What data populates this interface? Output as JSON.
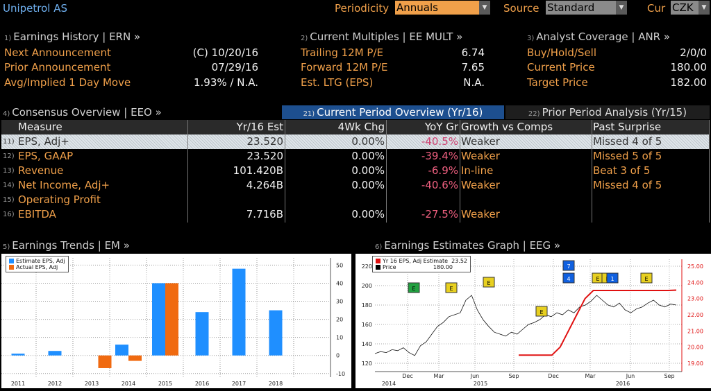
{
  "header": {
    "company": "Unipetrol AS",
    "periodicity_label": "Periodicity",
    "periodicity_value": "Annuals",
    "source_label": "Source",
    "source_value": "Standard",
    "cur_label": "Cur",
    "cur_value": "CZK"
  },
  "earnings_history": {
    "num": "1)",
    "title": "Earnings History | ERN »",
    "rows": [
      {
        "label": "Next Announcement",
        "value": "(C)  10/20/16"
      },
      {
        "label": "Prior Announcement",
        "value": "07/29/16"
      },
      {
        "label": "Avg/Implied 1 Day Move",
        "value": "1.93% / N.A."
      }
    ]
  },
  "current_multiples": {
    "num": "2)",
    "title": "Current Multiples | EE MULT »",
    "rows": [
      {
        "label": "Trailing 12M P/E",
        "value": "6.74"
      },
      {
        "label": "Forward 12M P/E",
        "value": "7.65"
      },
      {
        "label": "Est. LTG (EPS)",
        "value": "N.A."
      }
    ]
  },
  "analyst_coverage": {
    "num": "3)",
    "title": "Analyst Coverage | ANR »",
    "rows": [
      {
        "label": "Buy/Hold/Sell",
        "value": "2/0/0"
      },
      {
        "label": "Current Price",
        "value": "180.00"
      },
      {
        "label": "Target Price",
        "value": "182.00"
      }
    ]
  },
  "consensus": {
    "num": "4)",
    "title": "Consensus Overview | EEO »",
    "tab_current_num": "21)",
    "tab_current": "Current Period Overview (Yr/16)",
    "tab_prior_num": "22)",
    "tab_prior": "Prior Period Analysis (Yr/15)",
    "columns": [
      "Measure",
      "Yr/16 Est",
      "4Wk Chg",
      "YoY Gr",
      "Growth vs Comps",
      "Past Surprise"
    ],
    "rows": [
      {
        "num": "11)",
        "measure": "EPS, Adj+",
        "est": "23.520",
        "chg": "0.00%",
        "yoy": "-40.5%",
        "comps": "Weaker",
        "surprise": "Missed 4 of 5"
      },
      {
        "num": "12)",
        "measure": "EPS, GAAP",
        "est": "23.520",
        "chg": "0.00%",
        "yoy": "-39.4%",
        "comps": "Weaker",
        "surprise": "Missed 5 of 5"
      },
      {
        "num": "13)",
        "measure": "Revenue",
        "est": "101.420B",
        "chg": "0.00%",
        "yoy": "-6.9%",
        "comps": "In-line",
        "surprise": "Beat 3 of 5"
      },
      {
        "num": "14)",
        "measure": "Net Income, Adj+",
        "est": "4.264B",
        "chg": "0.00%",
        "yoy": "-40.6%",
        "comps": "Weaker",
        "surprise": "Missed 4 of 5"
      },
      {
        "num": "15)",
        "measure": "Operating Profit",
        "est": "",
        "chg": "",
        "yoy": "",
        "comps": "",
        "surprise": ""
      },
      {
        "num": "16)",
        "measure": "EBITDA",
        "est": "7.716B",
        "chg": "0.00%",
        "yoy": "-27.5%",
        "comps": "Weaker",
        "surprise": ""
      }
    ]
  },
  "earnings_trends": {
    "num": "5)",
    "title": "Earnings Trends | EM »"
  },
  "earnings_graph": {
    "num": "6)",
    "title": "Earnings Estimates Graph | EEG »"
  },
  "chart_data": [
    {
      "type": "bar",
      "categories": [
        "2011",
        "2012",
        "2013",
        "2014",
        "2015",
        "2016",
        "2017",
        "2018"
      ],
      "series": [
        {
          "name": "Estimate EPS, Adj",
          "color": "#1f8fff",
          "values": [
            1,
            2.5,
            null,
            6,
            40,
            24,
            48,
            25
          ]
        },
        {
          "name": "Actual EPS, Adj",
          "color": "#f06a10",
          "values": [
            null,
            null,
            -7,
            -3,
            40,
            null,
            null,
            null
          ]
        }
      ],
      "yticks": [
        -10,
        0,
        10,
        20,
        30,
        40,
        50
      ],
      "ylim": [
        -12,
        54
      ],
      "legend_position": "top-left"
    },
    {
      "type": "line",
      "x_labels": [
        "Dec",
        "Mar",
        "Jun",
        "Sep",
        "Dec",
        "Mar",
        "Jun",
        "Sep"
      ],
      "x_year_labels": [
        "2014",
        "2015",
        "2016"
      ],
      "left_yticks": [
        120,
        140,
        160,
        180,
        200,
        220
      ],
      "right_yticks": [
        "19.00",
        "20.00",
        "21.00",
        "22.00",
        "23.00",
        "24.00",
        "25.00"
      ],
      "legend": [
        {
          "name": "Yr 16 EPS, Adj Estimate",
          "value": "23.52",
          "color": "#e01010"
        },
        {
          "name": "Price",
          "value": "180.00",
          "color": "#000000"
        }
      ],
      "price_series": [
        130,
        132,
        131,
        134,
        133,
        136,
        131,
        128,
        138,
        142,
        150,
        158,
        162,
        168,
        170,
        172,
        185,
        190,
        175,
        165,
        158,
        152,
        150,
        148,
        152,
        150,
        155,
        160,
        162,
        165,
        170,
        168,
        172,
        170,
        175,
        172,
        178,
        180,
        184,
        190,
        185,
        180,
        178,
        182,
        175,
        172,
        176,
        178,
        182,
        185,
        180,
        178,
        181,
        180
      ],
      "estimate_series": [
        19.5,
        19.5,
        19.5,
        19.5,
        19.5,
        20.0,
        21.0,
        22.0,
        23.0,
        23.5,
        23.5,
        23.5,
        23.5,
        23.5,
        23.5,
        23.5,
        23.5,
        23.5,
        23.5,
        23.52
      ],
      "markers": [
        {
          "label": "E",
          "color": "#22a040"
        },
        {
          "label": "E",
          "color": "#e8d020"
        },
        {
          "label": "E",
          "color": "#e8d020"
        },
        {
          "label": "E",
          "color": "#e8d020"
        },
        {
          "label": "7",
          "color": "#1060e0"
        },
        {
          "label": "4",
          "color": "#1060e0"
        },
        {
          "label": "E",
          "color": "#e8d020"
        },
        {
          "label": "E",
          "color": "#e8d020"
        },
        {
          "label": "1",
          "color": "#1060e0"
        },
        {
          "label": "E",
          "color": "#e8d020"
        }
      ]
    }
  ]
}
